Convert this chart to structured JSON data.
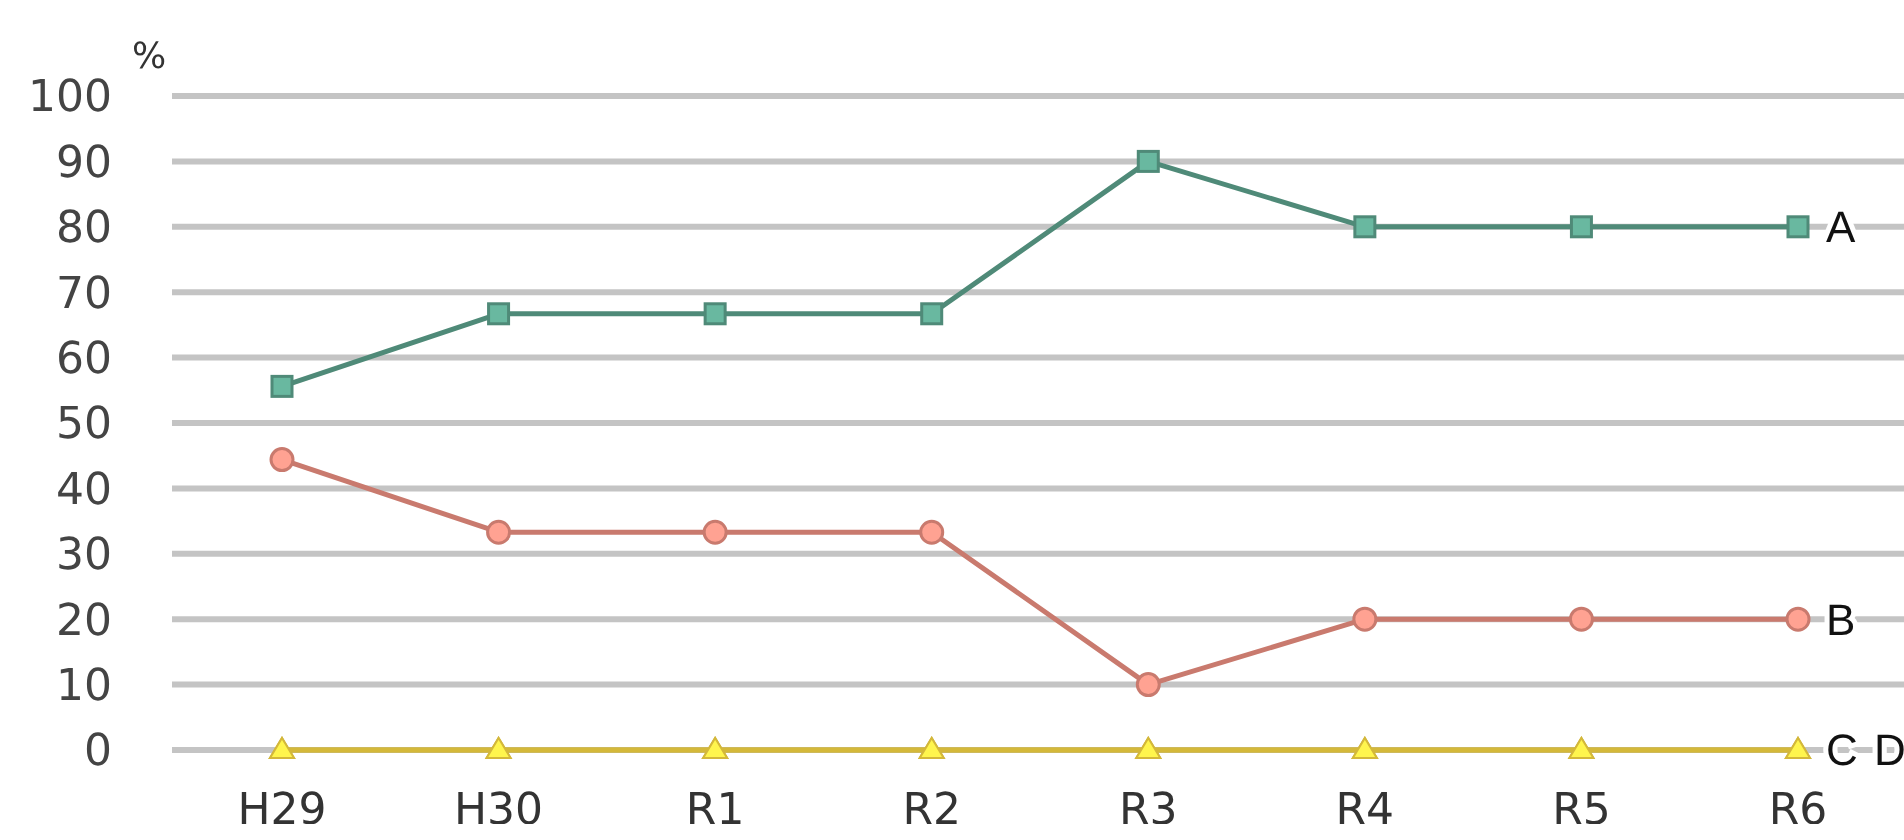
{
  "chart_data": {
    "type": "line",
    "ylabel": "%",
    "categories": [
      "H29",
      "H30",
      "R1",
      "R2",
      "R3",
      "R4",
      "R5",
      "R6"
    ],
    "ylim": [
      0,
      100
    ],
    "yticks": [
      0,
      10,
      20,
      30,
      40,
      50,
      60,
      70,
      80,
      90,
      100
    ],
    "grid": "y",
    "series": [
      {
        "name": "D",
        "color": "#c9b037",
        "marker": "triangle",
        "values": [
          0,
          0,
          0,
          0,
          0,
          0,
          0,
          0
        ]
      },
      {
        "name": "A",
        "color": "#4f8a78",
        "marker": "square",
        "values": [
          55.6,
          66.7,
          66.7,
          66.7,
          90,
          80,
          80,
          80
        ]
      },
      {
        "name": "B",
        "color": "#c97a6e",
        "marker": "circle",
        "values": [
          44.4,
          33.3,
          33.3,
          33.3,
          10,
          20,
          20,
          20
        ]
      },
      {
        "name": "C",
        "color": "#d4b83a",
        "marker": "triangle",
        "values": [
          0,
          0,
          0,
          0,
          0,
          0,
          0,
          0
        ]
      }
    ]
  }
}
